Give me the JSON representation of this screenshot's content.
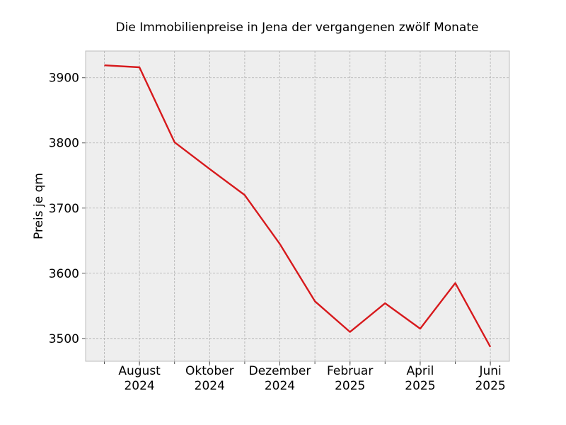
{
  "chart_data": {
    "type": "line",
    "title": "Die Immobilienpreise in Jena der vergangenen zwölf Monate",
    "xlabel": "",
    "ylabel": "Preis je qm",
    "grid": true,
    "legend": "none",
    "x": [
      "2024-07",
      "2024-08",
      "2024-09",
      "2024-10",
      "2024-11",
      "2024-12",
      "2025-01",
      "2025-02",
      "2025-03",
      "2025-04",
      "2025-05",
      "2025-06"
    ],
    "values": [
      3919,
      3916,
      3801,
      3760,
      3720,
      3645,
      3557,
      3510,
      3554,
      3515,
      3585,
      3487
    ],
    "ylim": [
      3465,
      3941
    ],
    "yticks": [
      3500,
      3600,
      3700,
      3800,
      3900
    ],
    "xtick_labels": [
      {
        "at": "2024-08",
        "line1": "August",
        "line2": "2024"
      },
      {
        "at": "2024-10",
        "line1": "Oktober",
        "line2": "2024"
      },
      {
        "at": "2024-12",
        "line1": "Dezember",
        "line2": "2024"
      },
      {
        "at": "2025-02",
        "line1": "Februar",
        "line2": "2025"
      },
      {
        "at": "2025-04",
        "line1": "April",
        "line2": "2025"
      },
      {
        "at": "2025-06",
        "line1": "Juni",
        "line2": "2025"
      }
    ],
    "colors": {
      "line": "#d7191c",
      "plot_background": "#eeeeee",
      "grid": "#b0b0b0",
      "frame": "#bcbcbc"
    }
  }
}
